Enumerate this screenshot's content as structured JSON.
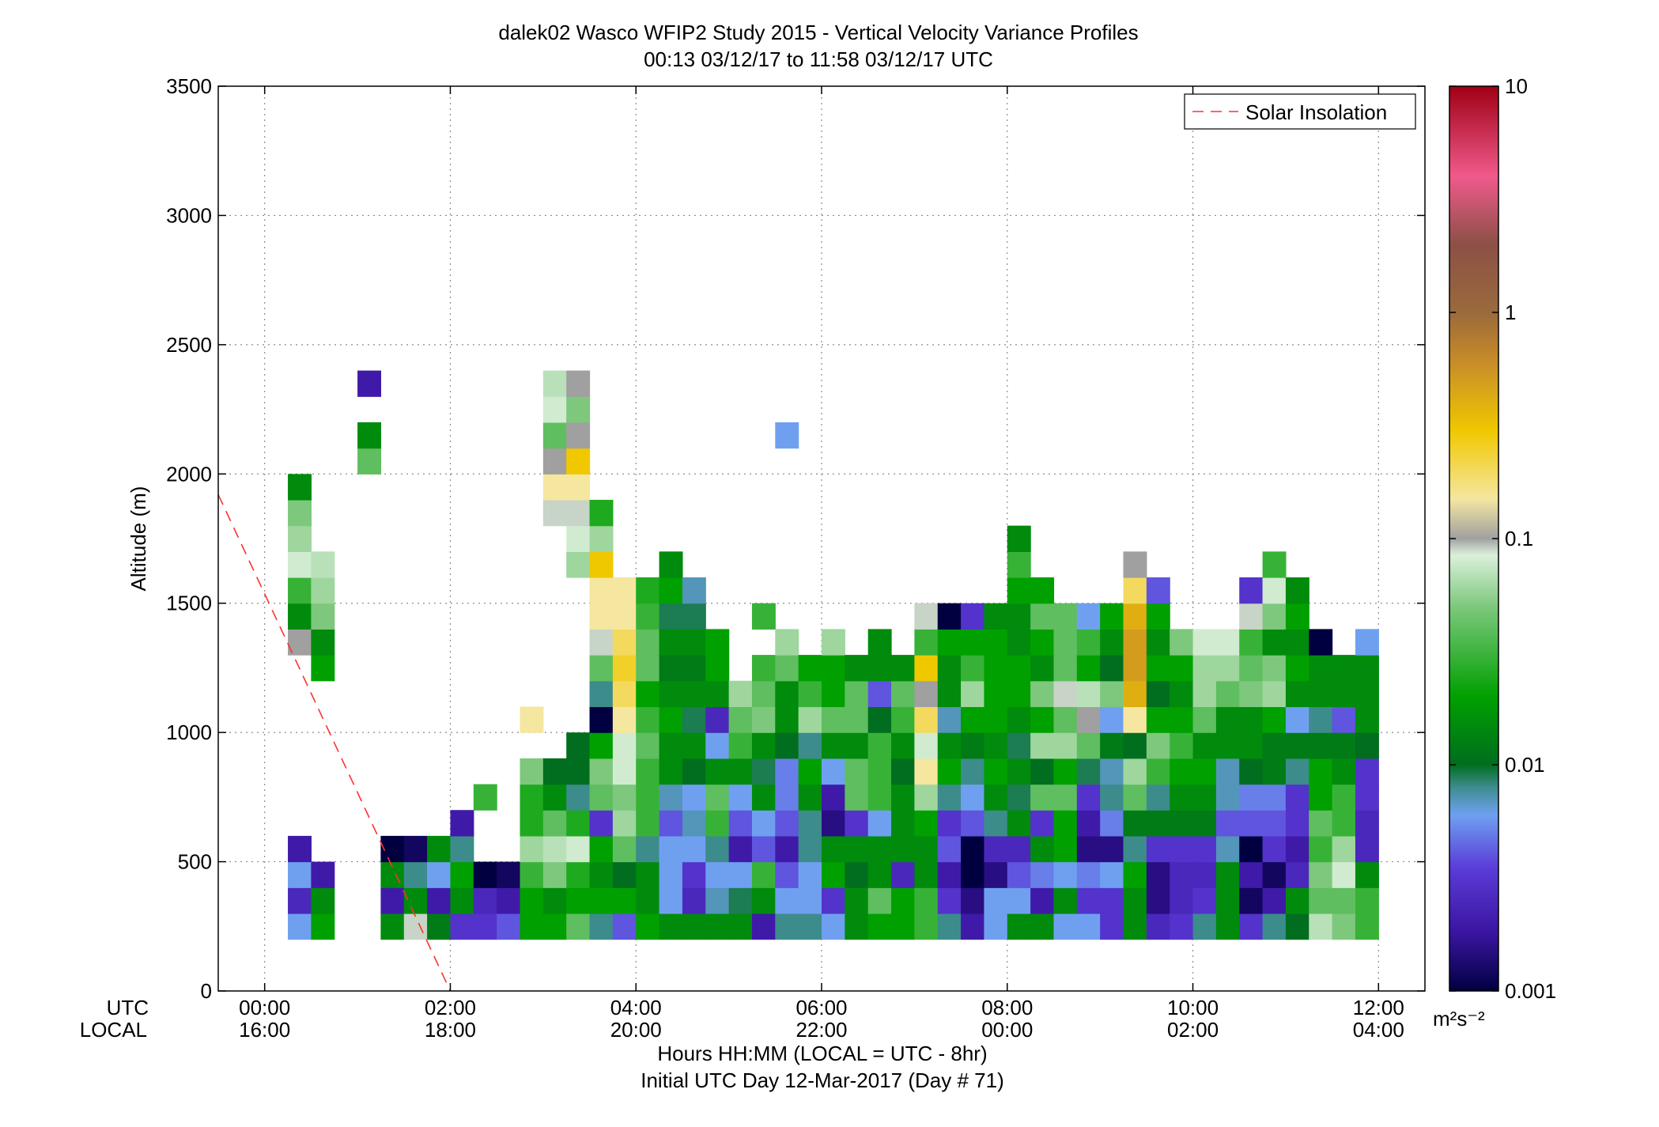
{
  "chart_data": {
    "type": "heatmap",
    "title": "dalek02 Wasco WFIP2 Study 2015 - Vertical Velocity Variance Profiles",
    "subtitle": "00:13 03/12/17 to 11:58 03/12/17  UTC",
    "xlabel": "Hours HH:MM  (LOCAL = UTC - 8hr)",
    "xlabel2": "Initial UTC Day 12-Mar-2017 (Day # 71)",
    "ylabel": "Altitude (m)",
    "row_labels": [
      "UTC",
      "LOCAL"
    ],
    "x_ticks_utc": [
      "00:00",
      "02:00",
      "04:00",
      "06:00",
      "08:00",
      "10:00",
      "12:00"
    ],
    "x_ticks_local": [
      "16:00",
      "18:00",
      "20:00",
      "22:00",
      "00:00",
      "02:00",
      "04:00"
    ],
    "x_tick_hours": [
      0,
      2,
      4,
      6,
      8,
      10,
      12
    ],
    "xlim_hours": [
      -0.5,
      12.5
    ],
    "y_ticks": [
      "0",
      "500",
      "1000",
      "1500",
      "2000",
      "2500",
      "3000",
      "3500"
    ],
    "ylim": [
      0,
      3500
    ],
    "grid": true,
    "legend": {
      "entries": [
        "Solar Insolation"
      ],
      "placement": "top-right"
    },
    "solar_insolation_line": {
      "hours": [
        -0.5,
        2.0
      ],
      "altitude": [
        1920,
        0
      ],
      "color": "#ff0000"
    },
    "colorbar": {
      "scale": "log",
      "range": [
        0.001,
        10
      ],
      "tick_labels": [
        "0.001",
        "0.01",
        "0.1",
        "1",
        "10"
      ],
      "unit": "m²s⁻²",
      "stops": [
        {
          "v": 0.001,
          "c": "#000040"
        },
        {
          "v": 0.0018,
          "c": "#3a14a0"
        },
        {
          "v": 0.0035,
          "c": "#5a3cd8"
        },
        {
          "v": 0.006,
          "c": "#6fa0f0"
        },
        {
          "v": 0.008,
          "c": "#3c8c8c"
        },
        {
          "v": 0.01,
          "c": "#006e1e"
        },
        {
          "v": 0.02,
          "c": "#00a000"
        },
        {
          "v": 0.05,
          "c": "#7dc87d"
        },
        {
          "v": 0.085,
          "c": "#dcf0dc"
        },
        {
          "v": 0.1,
          "c": "#a0a0a0"
        },
        {
          "v": 0.15,
          "c": "#f5e6a0"
        },
        {
          "v": 0.3,
          "c": "#f0c800"
        },
        {
          "v": 0.6,
          "c": "#c88c28"
        },
        {
          "v": 1.0,
          "c": "#9a6a3c"
        },
        {
          "v": 2.0,
          "c": "#8c5046"
        },
        {
          "v": 4.0,
          "c": "#f05a8c"
        },
        {
          "v": 10.0,
          "c": "#a00014"
        }
      ]
    },
    "cell_width_hours": 0.25,
    "cell_height_m": 100,
    "columns": [
      {
        "t": 0.375,
        "z0": 200,
        "v": [
          0.006,
          0.0025,
          0.006,
          0.002
        ]
      },
      {
        "t": 0.375,
        "z0": 1300,
        "v": [
          0.1,
          0.015,
          0.03,
          0.08,
          0.06,
          0.05,
          0.015
        ]
      },
      {
        "t": 0.625,
        "z0": 200,
        "v": [
          0.02,
          0.015,
          0.002
        ]
      },
      {
        "t": 0.625,
        "z0": 1200,
        "v": [
          0.02,
          0.015,
          0.05,
          0.06,
          0.07
        ]
      },
      {
        "t": 1.125,
        "z0": 2000,
        "v": [
          0.04,
          0.015
        ]
      },
      {
        "t": 1.125,
        "z0": 2300,
        "v": [
          0.002
        ]
      },
      {
        "t": 1.375,
        "z0": 200,
        "v": [
          0.015,
          0.002,
          0.015,
          0.001
        ]
      },
      {
        "t": 1.625,
        "z0": 200,
        "v": [
          0.09,
          0.015,
          0.008,
          0.0012
        ]
      },
      {
        "t": 1.875,
        "z0": 200,
        "v": [
          0.012,
          0.002,
          0.006,
          0.015
        ]
      },
      {
        "t": 2.125,
        "z0": 200,
        "v": [
          0.003,
          0.015,
          0.02,
          0.008,
          0.002
        ]
      },
      {
        "t": 2.375,
        "z0": 200,
        "v": [
          0.003,
          0.0025,
          0.001
        ]
      },
      {
        "t": 2.375,
        "z0": 700,
        "v": [
          0.03
        ]
      },
      {
        "t": 2.625,
        "z0": 200,
        "v": [
          0.004,
          0.002,
          0.0012
        ]
      },
      {
        "t": 2.875,
        "z0": 200,
        "v": [
          0.02,
          0.02,
          0.03,
          0.06,
          0.025,
          0.025,
          0.05
        ]
      },
      {
        "t": 2.875,
        "z0": 1000,
        "v": [
          0.15
        ]
      },
      {
        "t": 3.125,
        "z0": 200,
        "v": [
          0.02,
          0.015,
          0.05,
          0.07,
          0.04,
          0.015,
          0.01
        ]
      },
      {
        "t": 3.125,
        "z0": 1800,
        "v": [
          0.09,
          0.15,
          0.1,
          0.04,
          0.08,
          0.07
        ]
      },
      {
        "t": 3.375,
        "z0": 200,
        "v": [
          0.04,
          0.02,
          0.025,
          0.08,
          0.025,
          0.008,
          0.01,
          0.01
        ]
      },
      {
        "t": 3.375,
        "z0": 1600,
        "v": [
          0.06,
          0.08,
          0.09,
          0.15,
          0.3,
          0.1,
          0.05,
          0.1
        ]
      },
      {
        "t": 3.625,
        "z0": 200,
        "v": [
          0.008,
          0.02,
          0.015,
          0.02,
          0.003,
          0.04,
          0.05,
          0.02,
          0.001,
          0.008,
          0.04,
          0.09,
          0.15,
          0.15,
          0.3,
          0.06,
          0.025
        ]
      },
      {
        "t": 3.875,
        "z0": 200,
        "v": [
          0.004,
          0.02,
          0.01,
          0.04,
          0.06,
          0.05,
          0.08,
          0.08,
          0.15,
          0.2,
          0.25,
          0.2,
          0.15,
          0.15
        ]
      },
      {
        "t": 4.125,
        "z0": 200,
        "v": [
          0.02,
          0.015,
          0.015,
          0.008,
          0.03,
          0.03,
          0.03,
          0.04,
          0.03,
          0.02,
          0.04,
          0.04,
          0.03,
          0.025
        ]
      },
      {
        "t": 4.375,
        "z0": 200,
        "v": [
          0.015,
          0.006,
          0.006,
          0.006,
          0.004,
          0.007,
          0.015,
          0.015,
          0.02,
          0.015,
          0.012,
          0.015,
          0.009,
          0.02,
          0.015
        ]
      },
      {
        "t": 4.625,
        "z0": 200,
        "v": [
          0.015,
          0.0025,
          0.003,
          0.006,
          0.007,
          0.006,
          0.01,
          0.015,
          0.009,
          0.015,
          0.012,
          0.015,
          0.009,
          0.007
        ]
      },
      {
        "t": 4.875,
        "z0": 200,
        "v": [
          0.015,
          0.007,
          0.006,
          0.008,
          0.03,
          0.04,
          0.015,
          0.006,
          0.0025,
          0.015,
          0.02,
          0.02
        ]
      },
      {
        "t": 5.125,
        "z0": 200,
        "v": [
          0.015,
          0.009,
          0.006,
          0.002,
          0.004,
          0.006,
          0.015,
          0.03,
          0.04,
          0.06
        ]
      },
      {
        "t": 5.375,
        "z0": 200,
        "v": [
          0.002,
          0.015,
          0.03,
          0.004,
          0.006,
          0.015,
          0.009,
          0.015,
          0.05,
          0.04,
          0.03
        ]
      },
      {
        "t": 5.375,
        "z0": 1400,
        "v": [
          0.03
        ]
      },
      {
        "t": 5.625,
        "z0": 200,
        "v": [
          0.008,
          0.006,
          0.004,
          0.002,
          0.004,
          0.005,
          0.005,
          0.01,
          0.015,
          0.015,
          0.04,
          0.06
        ]
      },
      {
        "t": 5.625,
        "z0": 2100,
        "v": [
          0.006
        ]
      },
      {
        "t": 5.875,
        "z0": 200,
        "v": [
          0.008,
          0.006,
          0.006,
          0.008,
          0.008,
          0.015,
          0.02,
          0.008,
          0.06,
          0.03,
          0.02
        ]
      },
      {
        "t": 6.125,
        "z0": 200,
        "v": [
          0.006,
          0.003,
          0.02,
          0.015,
          0.0015,
          0.002,
          0.006,
          0.015,
          0.04,
          0.02,
          0.02,
          0.06
        ]
      },
      {
        "t": 6.375,
        "z0": 200,
        "v": [
          0.015,
          0.015,
          0.01,
          0.015,
          0.003,
          0.04,
          0.04,
          0.015,
          0.04,
          0.04,
          0.015
        ]
      },
      {
        "t": 6.625,
        "z0": 200,
        "v": [
          0.02,
          0.04,
          0.015,
          0.015,
          0.006,
          0.03,
          0.03,
          0.03,
          0.01,
          0.004,
          0.015,
          0.015
        ]
      },
      {
        "t": 6.875,
        "z0": 200,
        "v": [
          0.02,
          0.02,
          0.0025,
          0.015,
          0.015,
          0.015,
          0.01,
          0.015,
          0.03,
          0.04,
          0.015
        ]
      },
      {
        "t": 7.125,
        "z0": 200,
        "v": [
          0.03,
          0.03,
          0.015,
          0.015,
          0.02,
          0.06,
          0.15,
          0.08,
          0.2,
          0.1,
          0.3,
          0.03,
          0.09
        ]
      },
      {
        "t": 7.375,
        "z0": 200,
        "v": [
          0.008,
          0.003,
          0.002,
          0.004,
          0.003,
          0.008,
          0.02,
          0.015,
          0.007,
          0.015,
          0.015,
          0.02,
          0.001
        ]
      },
      {
        "t": 7.625,
        "z0": 200,
        "v": [
          0.002,
          0.0015,
          0.001,
          0.001,
          0.004,
          0.006,
          0.008,
          0.012,
          0.02,
          0.06,
          0.03,
          0.02,
          0.003
        ]
      },
      {
        "t": 7.875,
        "z0": 200,
        "v": [
          0.006,
          0.006,
          0.0015,
          0.0025,
          0.008,
          0.015,
          0.02,
          0.015,
          0.02,
          0.02,
          0.02,
          0.02,
          0.015
        ]
      },
      {
        "t": 8.125,
        "z0": 200,
        "v": [
          0.015,
          0.006,
          0.004,
          0.0025,
          0.015,
          0.009,
          0.015,
          0.009,
          0.015,
          0.02,
          0.02,
          0.015,
          0.015,
          0.02,
          0.03,
          0.015
        ]
      },
      {
        "t": 8.375,
        "z0": 200,
        "v": [
          0.015,
          0.002,
          0.005,
          0.015,
          0.003,
          0.04,
          0.01,
          0.06,
          0.02,
          0.05,
          0.015,
          0.02,
          0.04,
          0.02
        ]
      },
      {
        "t": 8.625,
        "z0": 200,
        "v": [
          0.006,
          0.015,
          0.006,
          0.02,
          0.02,
          0.04,
          0.02,
          0.06,
          0.04,
          0.09,
          0.04,
          0.04,
          0.04
        ]
      },
      {
        "t": 8.875,
        "z0": 200,
        "v": [
          0.006,
          0.003,
          0.005,
          0.0015,
          0.002,
          0.003,
          0.009,
          0.04,
          0.1,
          0.07,
          0.02,
          0.03,
          0.006
        ]
      },
      {
        "t": 9.125,
        "z0": 200,
        "v": [
          0.003,
          0.003,
          0.006,
          0.0015,
          0.005,
          0.008,
          0.007,
          0.012,
          0.006,
          0.05,
          0.01,
          0.015,
          0.02
        ]
      },
      {
        "t": 9.375,
        "z0": 200,
        "v": [
          0.015,
          0.015,
          0.02,
          0.008,
          0.012,
          0.04,
          0.06,
          0.01,
          0.15,
          0.4,
          0.5,
          0.5,
          0.4,
          0.2,
          0.1
        ]
      },
      {
        "t": 9.625,
        "z0": 200,
        "v": [
          0.0025,
          0.0015,
          0.0015,
          0.003,
          0.012,
          0.008,
          0.03,
          0.05,
          0.02,
          0.01,
          0.02,
          0.015,
          0.02,
          0.004
        ]
      },
      {
        "t": 9.875,
        "z0": 200,
        "v": [
          0.003,
          0.0025,
          0.0025,
          0.003,
          0.012,
          0.015,
          0.02,
          0.03,
          0.02,
          0.015,
          0.02,
          0.05
        ]
      },
      {
        "t": 10.125,
        "z0": 200,
        "v": [
          0.008,
          0.003,
          0.0025,
          0.003,
          0.012,
          0.015,
          0.02,
          0.015,
          0.04,
          0.06,
          0.06,
          0.08
        ]
      },
      {
        "t": 10.375,
        "z0": 200,
        "v": [
          0.015,
          0.015,
          0.015,
          0.007,
          0.004,
          0.007,
          0.007,
          0.015,
          0.015,
          0.04,
          0.06,
          0.08
        ]
      },
      {
        "t": 10.625,
        "z0": 200,
        "v": [
          0.003,
          0.0012,
          0.002,
          0.001,
          0.004,
          0.005,
          0.01,
          0.015,
          0.015,
          0.05,
          0.04,
          0.03,
          0.09,
          0.003
        ]
      },
      {
        "t": 10.875,
        "z0": 200,
        "v": [
          0.008,
          0.002,
          0.0012,
          0.003,
          0.004,
          0.005,
          0.012,
          0.012,
          0.02,
          0.06,
          0.05,
          0.015,
          0.05,
          0.08,
          0.03
        ]
      },
      {
        "t": 11.125,
        "z0": 200,
        "v": [
          0.01,
          0.015,
          0.0025,
          0.002,
          0.003,
          0.003,
          0.008,
          0.012,
          0.006,
          0.015,
          0.02,
          0.015,
          0.02,
          0.015
        ]
      },
      {
        "t": 11.375,
        "z0": 200,
        "v": [
          0.07,
          0.04,
          0.05,
          0.03,
          0.04,
          0.02,
          0.02,
          0.012,
          0.008,
          0.015,
          0.015,
          0.001
        ]
      },
      {
        "t": 11.625,
        "z0": 200,
        "v": [
          0.05,
          0.04,
          0.08,
          0.06,
          0.03,
          0.03,
          0.015,
          0.012,
          0.004,
          0.015,
          0.015
        ]
      },
      {
        "t": 11.875,
        "z0": 200,
        "v": [
          0.03,
          0.03,
          0.015,
          0.0025,
          0.0025,
          0.003,
          0.003,
          0.01,
          0.015,
          0.015,
          0.015,
          0.006
        ]
      }
    ]
  }
}
